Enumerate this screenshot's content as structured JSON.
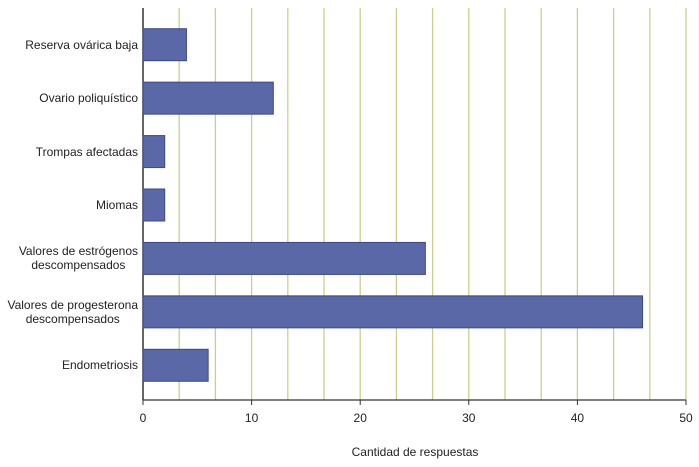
{
  "chart_data": {
    "type": "barh",
    "x_label": "Cantidad de respuestas",
    "categories": [
      "Reserva ovárica baja",
      "Ovario poliquístico",
      "Trompas afectadas",
      "Miomas",
      "Valores de estrógenos\ndescompensados",
      "Valores de progesterona\ndescompensados",
      "Endometriosis"
    ],
    "values": [
      4,
      12,
      2,
      2,
      26,
      46,
      6
    ],
    "color": "#5a68a8",
    "xlim": [
      0,
      50
    ],
    "xticks": [
      0,
      10,
      20,
      30,
      40,
      50
    ],
    "grid": true,
    "grid_divisions": 15,
    "grid_color": "#c9d08c"
  }
}
